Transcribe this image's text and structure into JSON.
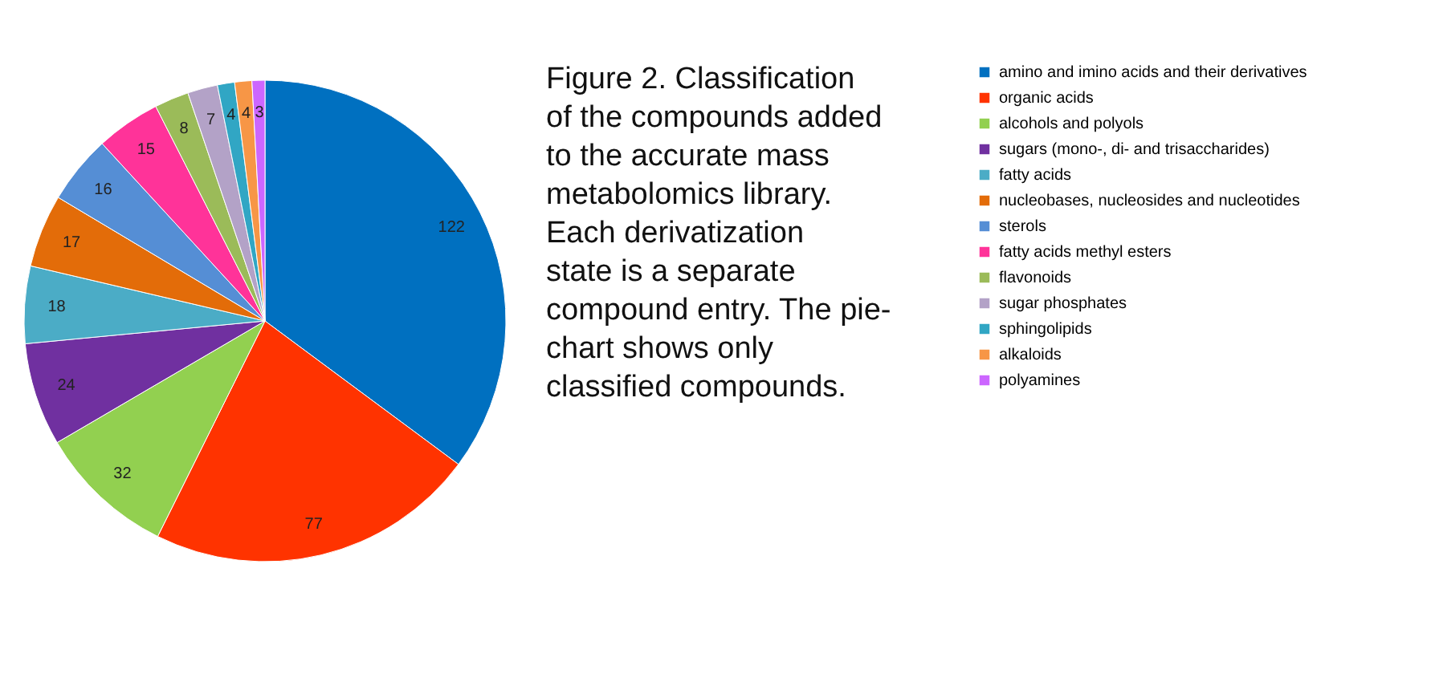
{
  "chart_data": {
    "type": "pie",
    "categories": [
      "amino and imino acids and their derivatives",
      "organic acids",
      "alcohols and polyols",
      "sugars (mono-, di- and trisaccharides)",
      "fatty acids",
      "nucleobases, nucleosides and nucleotides",
      "sterols",
      "fatty acids methyl esters",
      "flavonoids",
      "sugar phosphates",
      "sphingolipids",
      "alkaloids",
      "polyamines"
    ],
    "values": [
      122,
      77,
      32,
      24,
      18,
      17,
      16,
      15,
      8,
      7,
      4,
      4,
      3
    ],
    "colors": [
      "#0070c0",
      "#ff3300",
      "#92d050",
      "#7030a0",
      "#4bacc6",
      "#e36c09",
      "#558ed5",
      "#ff3399",
      "#9bbb59",
      "#b3a2c7",
      "#31a6c4",
      "#f79646",
      "#cc66ff"
    ],
    "data_labels": true,
    "legend": "right",
    "annotations": [
      "Figure 2. Classification of the compounds added to the accurate mass metabolomics library. Each derivatization state is a separate compound entry. The pie-chart shows only classified compounds."
    ]
  }
}
